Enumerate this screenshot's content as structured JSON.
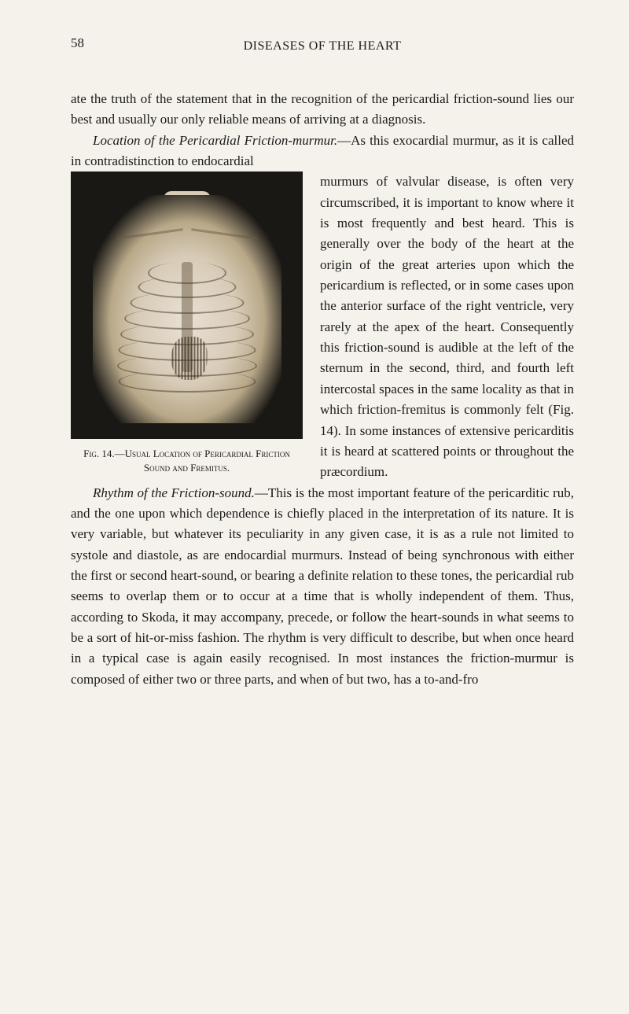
{
  "page_number": "58",
  "running_head": "DISEASES OF THE HEART",
  "para1": "ate the truth of the statement that in the recognition of the pericardial friction-sound lies our best and usually our only reliable means of arriving at a diagnosis.",
  "para2_lead": "Location of the Pericardial Friction-murmur.",
  "para2_rest": "—As this exocardial murmur, as it is called in contradistinction to endocardial murmurs of valvular disease, is often very circumscribed, it is important to know where it is most frequently and best heard. This is generally over the body of the heart at the origin of the great arteries upon which the pericardium is reflected, or in some cases upon the anterior surface of the right ventricle, very rarely at the apex of the heart. Consequently this friction-sound is audible at the left of the sternum in the second, third, and fourth left intercostal spaces in the same locality as that in which friction-fremitus is commonly felt (Fig. 14). In some instances of extensive pericarditis it is heard at scattered points or throughout the præcordium.",
  "para3_lead": "Rhythm of the Friction-sound.",
  "para3_rest": "—This is the most important feature of the pericarditic rub, and the one upon which dependence is chiefly placed in the interpretation of its nature. It is very variable, but whatever its peculiarity in any given case, it is as a rule not limited to systole and diastole, as are endocardial murmurs. Instead of being synchronous with either the first or second heart-sound, or bearing a definite relation to these tones, the pericardial rub seems to overlap them or to occur at a time that is wholly independent of them. Thus, according to Skoda, it may accompany, precede, or follow the heart-sounds in what seems to be a sort of hit-or-miss fashion. The rhythm is very difficult to describe, but when once heard in a typical case is again easily recognised. In most instances the friction-murmur is composed of either two or three parts, and when of but two, has a to-and-fro",
  "figure": {
    "label": "Fig. 14.—Usual Location of Pericardial Friction Sound and Fremitus."
  },
  "colors": {
    "background": "#f5f2eb",
    "text": "#1a1a1a",
    "figure_bg": "#1a1815",
    "body_inner": "#e8e0d4",
    "body_mid": "#d8ccb8",
    "body_outer": "#b8a888",
    "rib_line": "#5a4a3a",
    "sternum": "#6a5a44",
    "shade": "#3a2f20"
  },
  "fontsize": {
    "body": 17,
    "caption": 13,
    "header": 16
  }
}
